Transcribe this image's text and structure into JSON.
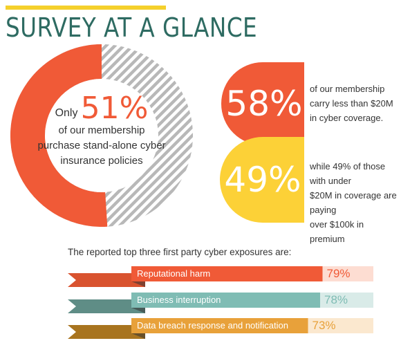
{
  "header": {
    "title": "SURVEY AT A GLANCE"
  },
  "donut": {
    "only_label": "Only",
    "percent_text": "51%",
    "description_lines": [
      "of our membership",
      "purchase stand-alone cyber",
      "insurance policies"
    ],
    "filled_fraction": 0.51,
    "fill_color": "#f05a37",
    "stripe_color": "#b8b8b8"
  },
  "stats": [
    {
      "value_text": "58%",
      "color": "#f05a37",
      "description_lines": [
        "of our membership",
        "carry less than $20M",
        "in cyber coverage."
      ]
    },
    {
      "value_text": "49%",
      "color": "#fcd137",
      "description_lines": [
        "while 49% of those with under",
        "$20M in coverage are paying",
        "over $100k in premium"
      ]
    }
  ],
  "exposures_heading": "The reported top three first party cyber exposures are:",
  "chart_data": {
    "type": "bar",
    "orientation": "horizontal",
    "categories": [
      "Reputational harm",
      "Business interruption",
      "Data breach response and notification"
    ],
    "values": [
      79,
      78,
      73
    ],
    "value_labels": [
      "79%",
      "78%",
      "73%"
    ],
    "xlim": [
      0,
      100
    ],
    "colors": [
      "#f05a37",
      "#7fbcb4",
      "#e8a13a"
    ],
    "track_colors": [
      "#fdddd2",
      "#d9ebe8",
      "#fbe8cf"
    ],
    "ribbon_colors": [
      "#d9532f",
      "#5f8d86",
      "#a8741f"
    ],
    "percent_colors": [
      "#f05a37",
      "#7fbcb4",
      "#e8a13a"
    ]
  }
}
